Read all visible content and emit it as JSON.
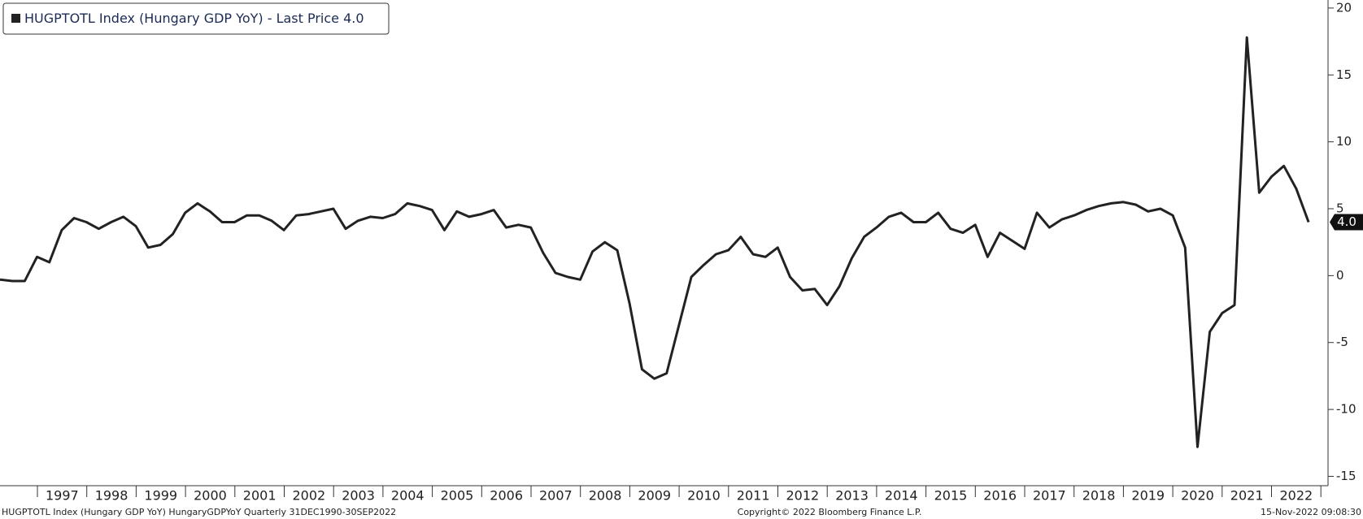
{
  "chart_data": {
    "type": "line",
    "legend": "HUGPTOTL Index (Hungary GDP YoY) - Last Price",
    "last_value_label": "4.0",
    "footer_left": "HUGPTOTL Index (Hungary GDP YoY) HungaryGDPYoY  Quarterly 31DEC1990-30SEP2022",
    "footer_center": "Copyright© 2022 Bloomberg Finance L.P.",
    "footer_right": "15-Nov-2022 09:08:30",
    "xticks": [
      "1997",
      "1998",
      "1999",
      "2000",
      "2001",
      "2002",
      "2003",
      "2004",
      "2005",
      "2006",
      "2007",
      "2008",
      "2009",
      "2010",
      "2011",
      "2012",
      "2013",
      "2014",
      "2015",
      "2016",
      "2017",
      "2018",
      "2019",
      "2020",
      "2021",
      "2022"
    ],
    "series": [
      {
        "name": "HUGPTOTL Index (Hungary GDP YoY)",
        "color": "#222222",
        "values": [
          -0.3,
          -0.4,
          -0.4,
          1.4,
          1.0,
          3.4,
          4.3,
          4.0,
          3.5,
          4.0,
          4.4,
          3.7,
          2.1,
          2.3,
          3.1,
          4.7,
          5.4,
          4.8,
          4.0,
          4.0,
          4.5,
          4.5,
          4.1,
          3.4,
          4.5,
          4.6,
          4.8,
          5.0,
          3.5,
          4.1,
          4.4,
          4.3,
          4.6,
          5.4,
          5.2,
          4.9,
          3.4,
          4.8,
          4.4,
          4.6,
          4.9,
          3.6,
          3.8,
          3.6,
          1.7,
          0.2,
          -0.1,
          -0.3,
          1.8,
          2.5,
          1.9,
          -2.1,
          -7.0,
          -7.7,
          -7.3,
          -3.7,
          -0.1,
          0.8,
          1.6,
          1.9,
          2.9,
          1.6,
          1.4,
          2.1,
          -0.1,
          -1.1,
          -1.0,
          -2.2,
          -0.8,
          1.3,
          2.9,
          3.6,
          4.4,
          4.7,
          4.0,
          4.0,
          4.7,
          3.5,
          3.2,
          3.8,
          1.4,
          3.2,
          2.6,
          2.0,
          4.7,
          3.6,
          4.2,
          4.5,
          4.9,
          5.2,
          5.4,
          5.5,
          5.3,
          4.8,
          5.0,
          4.5,
          2.1,
          -12.8,
          -4.2,
          -2.8,
          -2.2,
          17.8,
          6.2,
          7.4,
          8.2,
          6.5,
          4.0
        ]
      }
    ],
    "ylim": [
      -15.7,
      20.6
    ],
    "yticks": [
      -15,
      -10,
      -5,
      0,
      5,
      10,
      15,
      20
    ],
    "grid": false
  }
}
